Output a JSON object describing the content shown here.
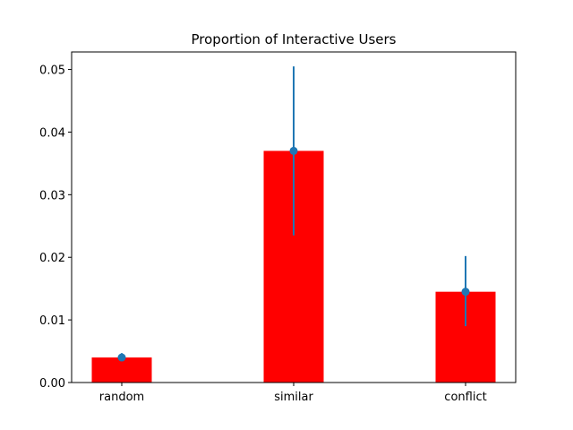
{
  "chart_data": {
    "type": "bar",
    "title": "Proportion of Interactive Users",
    "xlabel": "",
    "ylabel": "",
    "categories": [
      "random",
      "similar",
      "conflict"
    ],
    "values": [
      0.004,
      0.037,
      0.0145
    ],
    "error_low": [
      0.0035,
      0.0235,
      0.009
    ],
    "error_high": [
      0.0047,
      0.0505,
      0.0202
    ],
    "ylim": [
      0,
      0.0528
    ],
    "yticks": [
      0,
      0.01,
      0.02,
      0.03,
      0.04,
      0.05
    ],
    "ytick_labels": [
      "0.00",
      "0.01",
      "0.02",
      "0.03",
      "0.04",
      "0.05"
    ],
    "grid": false,
    "legend": "none",
    "colors": {
      "bar": "#ff0000",
      "errorbar": "#1f77b4",
      "axis": "#000000"
    }
  }
}
